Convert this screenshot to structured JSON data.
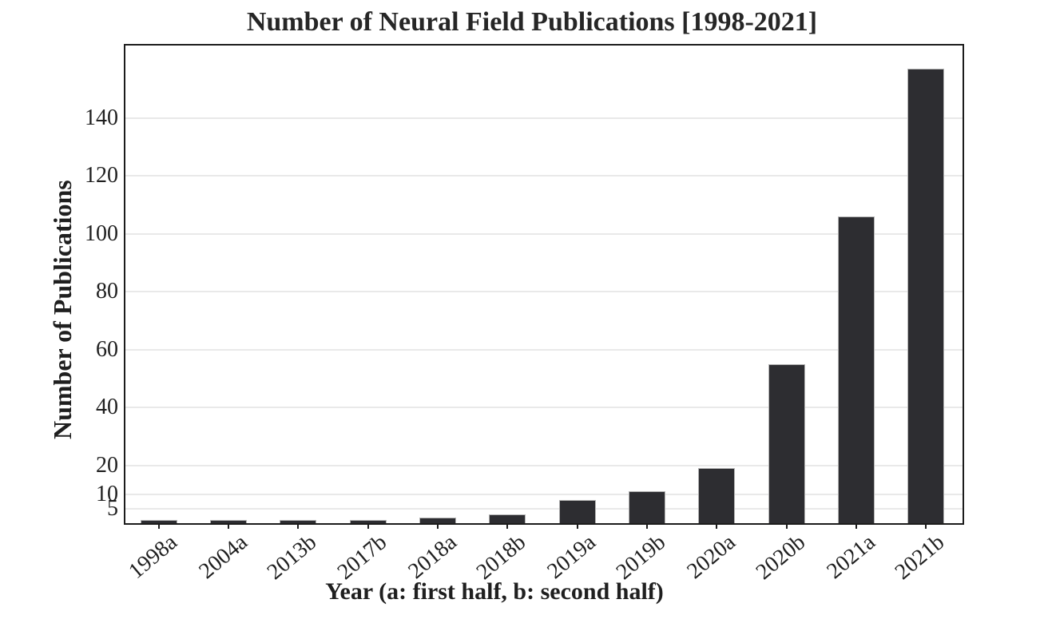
{
  "chart_data": {
    "type": "bar",
    "title": "Number of Neural Field Publications [1998-2021]",
    "xlabel": "Year (a: first half, b: second half)",
    "ylabel": "Number of Publications",
    "categories": [
      "1998a",
      "2004a",
      "2013b",
      "2017b",
      "2018a",
      "2018b",
      "2019a",
      "2019b",
      "2020a",
      "2020b",
      "2021a",
      "2021b"
    ],
    "values": [
      1,
      1,
      1,
      1,
      2,
      3,
      8,
      11,
      19,
      55,
      106,
      157
    ],
    "yticks": [
      5,
      10,
      20,
      40,
      60,
      80,
      100,
      120,
      140
    ],
    "ylim": [
      0,
      165
    ],
    "grid": true,
    "legend": "none",
    "bar_color": "#2d2d31",
    "bar_edge_color": "#b4b4b4",
    "grid_color": "#e9e9e9",
    "axis_color": "#1c1c1c",
    "text_color": "#1f1f1f",
    "background_color": "#ffffff"
  }
}
